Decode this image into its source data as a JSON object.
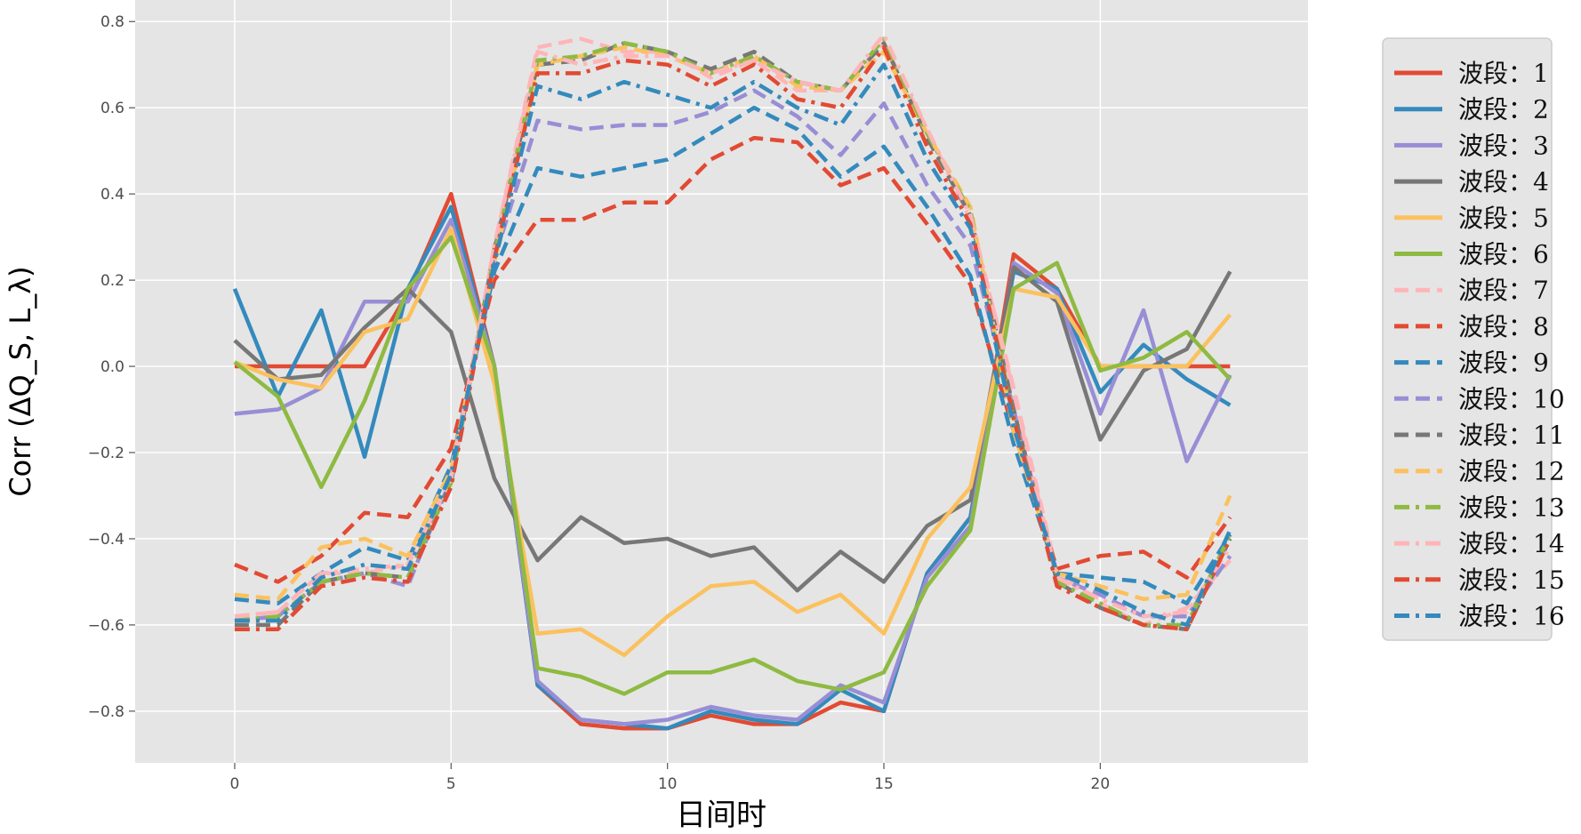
{
  "chart_data": {
    "type": "line",
    "xlabel": "日间时",
    "ylabel": "Corr (ΔQ_S, L_λ)",
    "xlim": [
      -2.3,
      24.8
    ],
    "ylim": [
      -0.92,
      0.85
    ],
    "xticks": [
      0,
      5,
      10,
      15,
      20
    ],
    "yticks": [
      -0.8,
      -0.6,
      -0.4,
      -0.2,
      0.0,
      0.2,
      0.4,
      0.6,
      0.8
    ],
    "ytick_labels": [
      "−0.8",
      "−0.6",
      "−0.4",
      "−0.2",
      "0.0",
      "0.2",
      "0.4",
      "0.6",
      "0.8"
    ],
    "grid": true,
    "legend_position": "right, outside plot",
    "x": [
      0,
      1,
      2,
      3,
      4,
      5,
      6,
      7,
      8,
      9,
      10,
      11,
      12,
      13,
      14,
      15,
      16,
      17,
      18,
      19,
      20,
      21,
      22,
      23
    ],
    "series": [
      {
        "name": "波段：1",
        "color": "#E24A33",
        "style": "solid",
        "values": [
          0.0,
          0.0,
          0.0,
          0.0,
          0.17,
          0.4,
          0.0,
          -0.74,
          -0.83,
          -0.84,
          -0.84,
          -0.81,
          -0.83,
          -0.83,
          -0.78,
          -0.8,
          -0.48,
          -0.35,
          0.26,
          0.18,
          0.0,
          0.0,
          0.0,
          0.0
        ]
      },
      {
        "name": "波段：2",
        "color": "#348ABD",
        "style": "solid",
        "values": [
          0.18,
          -0.07,
          0.13,
          -0.21,
          0.18,
          0.37,
          0.0,
          -0.74,
          -0.82,
          -0.83,
          -0.84,
          -0.8,
          -0.82,
          -0.83,
          -0.75,
          -0.8,
          -0.48,
          -0.35,
          0.22,
          0.18,
          -0.06,
          0.05,
          -0.03,
          -0.09
        ]
      },
      {
        "name": "波段：3",
        "color": "#988ED5",
        "style": "solid",
        "values": [
          -0.11,
          -0.1,
          -0.05,
          0.15,
          0.15,
          0.34,
          0.0,
          -0.73,
          -0.82,
          -0.83,
          -0.82,
          -0.79,
          -0.81,
          -0.82,
          -0.74,
          -0.78,
          -0.49,
          -0.37,
          0.24,
          0.17,
          -0.11,
          0.13,
          -0.22,
          -0.02
        ]
      },
      {
        "name": "波段：4",
        "color": "#777777",
        "style": "solid",
        "values": [
          0.06,
          -0.03,
          -0.02,
          0.09,
          0.18,
          0.08,
          -0.26,
          -0.45,
          -0.35,
          -0.41,
          -0.4,
          -0.44,
          -0.42,
          -0.52,
          -0.43,
          -0.5,
          -0.37,
          -0.31,
          0.23,
          0.15,
          -0.17,
          -0.01,
          0.04,
          0.22
        ]
      },
      {
        "name": "波段：5",
        "color": "#FBC15E",
        "style": "solid",
        "values": [
          0.01,
          -0.03,
          -0.05,
          0.08,
          0.11,
          0.32,
          -0.04,
          -0.62,
          -0.61,
          -0.67,
          -0.58,
          -0.51,
          -0.5,
          -0.57,
          -0.53,
          -0.62,
          -0.4,
          -0.28,
          0.18,
          0.16,
          0.0,
          0.0,
          0.0,
          0.12
        ]
      },
      {
        "name": "波段：6",
        "color": "#8EBA42",
        "style": "solid",
        "values": [
          0.01,
          -0.07,
          -0.28,
          -0.08,
          0.18,
          0.3,
          0.0,
          -0.7,
          -0.72,
          -0.76,
          -0.71,
          -0.71,
          -0.68,
          -0.73,
          -0.75,
          -0.71,
          -0.51,
          -0.38,
          0.18,
          0.24,
          -0.01,
          0.02,
          0.08,
          -0.03
        ]
      },
      {
        "name": "波段：7",
        "color": "#FFB5B8",
        "style": "dashed",
        "values": [
          -0.58,
          -0.57,
          -0.48,
          -0.48,
          -0.46,
          -0.27,
          0.28,
          0.74,
          0.76,
          0.73,
          0.73,
          0.67,
          0.71,
          0.64,
          0.64,
          0.75,
          0.55,
          0.34,
          -0.05,
          -0.48,
          -0.55,
          -0.6,
          -0.56,
          -0.45
        ]
      },
      {
        "name": "波段：8",
        "color": "#E24A33",
        "style": "dashed",
        "values": [
          -0.46,
          -0.5,
          -0.44,
          -0.34,
          -0.35,
          -0.19,
          0.2,
          0.34,
          0.34,
          0.38,
          0.38,
          0.48,
          0.53,
          0.52,
          0.42,
          0.46,
          0.33,
          0.19,
          -0.15,
          -0.47,
          -0.44,
          -0.43,
          -0.49,
          -0.35
        ]
      },
      {
        "name": "波段：9",
        "color": "#348ABD",
        "style": "dashed",
        "values": [
          -0.54,
          -0.55,
          -0.48,
          -0.42,
          -0.45,
          -0.23,
          0.22,
          0.46,
          0.44,
          0.46,
          0.48,
          0.54,
          0.6,
          0.55,
          0.44,
          0.51,
          0.37,
          0.21,
          -0.18,
          -0.48,
          -0.49,
          -0.5,
          -0.55,
          -0.39
        ]
      },
      {
        "name": "波段：10",
        "color": "#988ED5",
        "style": "dashed",
        "values": [
          -0.59,
          -0.58,
          -0.5,
          -0.48,
          -0.51,
          -0.26,
          0.25,
          0.57,
          0.55,
          0.56,
          0.56,
          0.59,
          0.64,
          0.58,
          0.49,
          0.61,
          0.42,
          0.28,
          -0.1,
          -0.49,
          -0.53,
          -0.58,
          -0.58,
          -0.44
        ]
      },
      {
        "name": "波段：11",
        "color": "#777777",
        "style": "dashed",
        "values": [
          -0.6,
          -0.6,
          -0.5,
          -0.48,
          -0.49,
          -0.27,
          0.27,
          0.7,
          0.71,
          0.75,
          0.73,
          0.69,
          0.73,
          0.66,
          0.64,
          0.75,
          0.53,
          0.35,
          -0.1,
          -0.5,
          -0.56,
          -0.6,
          -0.61,
          -0.4
        ]
      },
      {
        "name": "波段：12",
        "color": "#FBC15E",
        "style": "dashed",
        "values": [
          -0.53,
          -0.54,
          -0.42,
          -0.4,
          -0.44,
          -0.24,
          0.24,
          0.7,
          0.72,
          0.74,
          0.72,
          0.68,
          0.72,
          0.65,
          0.64,
          0.73,
          0.54,
          0.37,
          -0.15,
          -0.48,
          -0.51,
          -0.54,
          -0.53,
          -0.3
        ]
      },
      {
        "name": "波段：13",
        "color": "#8EBA42",
        "style": "dashdot",
        "values": [
          -0.59,
          -0.58,
          -0.5,
          -0.48,
          -0.49,
          -0.27,
          0.26,
          0.71,
          0.72,
          0.75,
          0.73,
          0.68,
          0.72,
          0.66,
          0.64,
          0.76,
          0.54,
          0.36,
          -0.12,
          -0.5,
          -0.55,
          -0.6,
          -0.6,
          -0.39
        ]
      },
      {
        "name": "波段：14",
        "color": "#FFB5B8",
        "style": "dashdot",
        "values": [
          -0.58,
          -0.57,
          -0.48,
          -0.47,
          -0.46,
          -0.26,
          0.28,
          0.73,
          0.7,
          0.72,
          0.72,
          0.68,
          0.71,
          0.66,
          0.64,
          0.77,
          0.55,
          0.35,
          -0.06,
          -0.49,
          -0.54,
          -0.58,
          -0.57,
          -0.42
        ]
      },
      {
        "name": "波段：15",
        "color": "#E24A33",
        "style": "dashdot",
        "values": [
          -0.61,
          -0.61,
          -0.51,
          -0.49,
          -0.5,
          -0.28,
          0.25,
          0.68,
          0.68,
          0.71,
          0.7,
          0.65,
          0.7,
          0.62,
          0.6,
          0.74,
          0.51,
          0.33,
          -0.12,
          -0.51,
          -0.56,
          -0.6,
          -0.61,
          -0.4
        ]
      },
      {
        "name": "波段：16",
        "color": "#348ABD",
        "style": "dashdot",
        "values": [
          -0.59,
          -0.59,
          -0.49,
          -0.46,
          -0.47,
          -0.25,
          0.24,
          0.65,
          0.62,
          0.66,
          0.63,
          0.6,
          0.66,
          0.6,
          0.56,
          0.7,
          0.48,
          0.32,
          -0.14,
          -0.48,
          -0.52,
          -0.57,
          -0.6,
          -0.38
        ]
      }
    ]
  }
}
